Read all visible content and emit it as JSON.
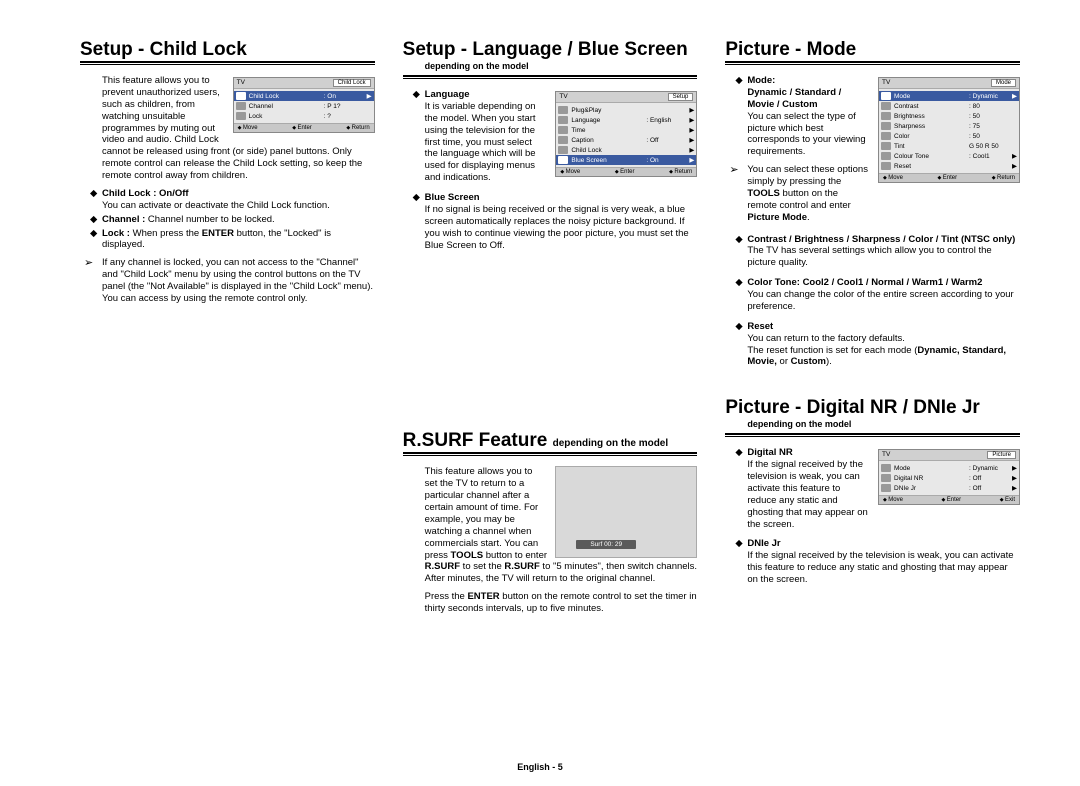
{
  "footer": "English - 5",
  "osd_buttons": {
    "move": "Move",
    "enter": "Enter",
    "return": "Return",
    "exit": "Exit"
  },
  "col1": {
    "s1": {
      "title": "Setup - Child Lock",
      "intro": "This feature allows you to prevent unauthorized users, such as children, from watching unsuitable programmes by muting out video and audio. Child Lock cannot be released using front (or side) panel buttons. Only remote control can release the Child Lock setting, so keep the remote control away from children.",
      "b1_label": "Child Lock : On/Off",
      "b1_text": "You can activate or deactivate the Child Lock function.",
      "b2_pre": "Channel :",
      "b2_text": " Channel number to be locked.",
      "b3_pre": "Lock :",
      "b3_text_a": " When press the ",
      "b3_bold": "ENTER",
      "b3_text_b": " button, the \"Locked\" is displayed.",
      "note": "If any channel is locked, you can not access to the \"Channel\" and \"Child Lock\" menu by using the control buttons on the TV panel (the \"Not Available\" is displayed in the \"Child Lock\" menu). You can access by using the remote control only.",
      "osd": {
        "tv": "TV",
        "badge": "Child Lock",
        "rows": [
          {
            "k": "Child Lock",
            "v": ": On",
            "a": "▶",
            "hi": true
          },
          {
            "k": "Channel",
            "v": ": P 1?",
            "a": "",
            "hi": false
          },
          {
            "k": "Lock",
            "v": ": ?",
            "a": "",
            "hi": false
          }
        ]
      }
    }
  },
  "col2": {
    "s1": {
      "title": "Setup - Language / Blue Screen",
      "subtitle": "depending on the model",
      "b1_label": "Language",
      "b1_text": "It is variable depending on the model. When you start using the television for the first time, you must select the language which will be used for displaying menus and indications.",
      "b2_label": "Blue Screen",
      "b2_text": "If no signal is being received or the signal is very weak, a blue screen automatically replaces the noisy picture background. If you wish to continue viewing the poor picture, you must set the Blue Screen to Off.",
      "osd": {
        "tv": "TV",
        "badge": "Setup",
        "rows": [
          {
            "k": "Plug&Play",
            "v": "",
            "a": "▶",
            "hi": false
          },
          {
            "k": "Language",
            "v": ": English",
            "a": "▶",
            "hi": false
          },
          {
            "k": "Time",
            "v": "",
            "a": "▶",
            "hi": false
          },
          {
            "k": "Caption",
            "v": ": Off",
            "a": "▶",
            "hi": false
          },
          {
            "k": "Child Lock",
            "v": "",
            "a": "▶",
            "hi": false
          },
          {
            "k": "Blue Screen",
            "v": ": On",
            "a": "▶",
            "hi": true
          }
        ]
      }
    },
    "s2": {
      "title_a": "R.SURF Feature ",
      "title_b": "depending on the model",
      "intro_a": "This feature allows you to set the TV to return to a particular channel after a certain amount of time. For example, you may be watching a channel when commercials start. You can press ",
      "tools": "TOOLS",
      "intro_b": " button to enter ",
      "rsurf": "R.SURF",
      "intro_c": " to set the ",
      "rsurf2": "R.SURF",
      "intro_d": " to \"5 minutes\", then switch channels. After minutes, the TV will return to the original channel.",
      "line2_a": "Press the ",
      "enter": "ENTER",
      "line2_b": " button on the remote control to set the timer in thirty seconds intervals, up to five minutes.",
      "surf_label": "Surf    00: 29"
    }
  },
  "col3": {
    "s1": {
      "title": "Picture - Mode",
      "b1_label": "Mode:\nDynamic / Standard / Movie / Custom",
      "b1_text": "You can select the type of picture which best corresponds to your viewing requirements.",
      "note_a": "You can select these options simply by pressing the ",
      "tools": "TOOLS",
      "note_b": " button on the remote control and enter ",
      "pm": "Picture Mode",
      "note_c": ".",
      "b2_label": "Contrast / Brightness / Sharpness / Color / Tint (NTSC only)",
      "b2_text": "The TV has several settings which allow you to control the picture quality.",
      "b3_label": "Color Tone: Cool2 / Cool1 / Normal / Warm1 / Warm2",
      "b3_text": "You can change the color of the entire screen according to your preference.",
      "b4_label": "Reset",
      "b4_text_a": "You can return to the factory defaults.\nThe reset function is set for each mode (",
      "b4_bold": "Dynamic, Standard, Movie,",
      "b4_or": " or ",
      "b4_bold2": "Custom",
      "b4_text_b": ").",
      "osd": {
        "tv": "TV",
        "badge": "Mode",
        "rows": [
          {
            "k": "Mode",
            "v": ": Dynamic",
            "a": "▶",
            "hi": true
          },
          {
            "k": "Contrast",
            "v": ": 80",
            "a": "",
            "hi": false
          },
          {
            "k": "Brightness",
            "v": ": 50",
            "a": "",
            "hi": false
          },
          {
            "k": "Sharpness",
            "v": ": 75",
            "a": "",
            "hi": false
          },
          {
            "k": "Color",
            "v": ": 50",
            "a": "",
            "hi": false
          },
          {
            "k": "Tint",
            "v": "G 50     R 50",
            "a": "",
            "hi": false
          },
          {
            "k": "Colour Tone",
            "v": ": Cool1",
            "a": "▶",
            "hi": false
          },
          {
            "k": "Reset",
            "v": "",
            "a": "▶",
            "hi": false
          }
        ]
      }
    },
    "s2": {
      "title": "Picture - Digital NR / DNIe Jr",
      "subtitle": "depending on the model",
      "b1_label": "Digital NR",
      "b1_text": "If the signal received by the television is weak, you can activate this feature to reduce any static and ghosting that may appear on the screen.",
      "b2_label": "DNIe Jr",
      "b2_text": "If the signal received by the television is weak, you can activate this feature to reduce any static and ghosting that may appear on the screen.",
      "osd": {
        "tv": "TV",
        "badge": "Picture",
        "rows": [
          {
            "k": "Mode",
            "v": ": Dynamic",
            "a": "▶",
            "hi": false
          },
          {
            "k": "Digital NR",
            "v": ": Off",
            "a": "▶",
            "hi": false
          },
          {
            "k": "DNIe Jr",
            "v": ": Off",
            "a": "▶",
            "hi": false
          }
        ]
      }
    }
  }
}
